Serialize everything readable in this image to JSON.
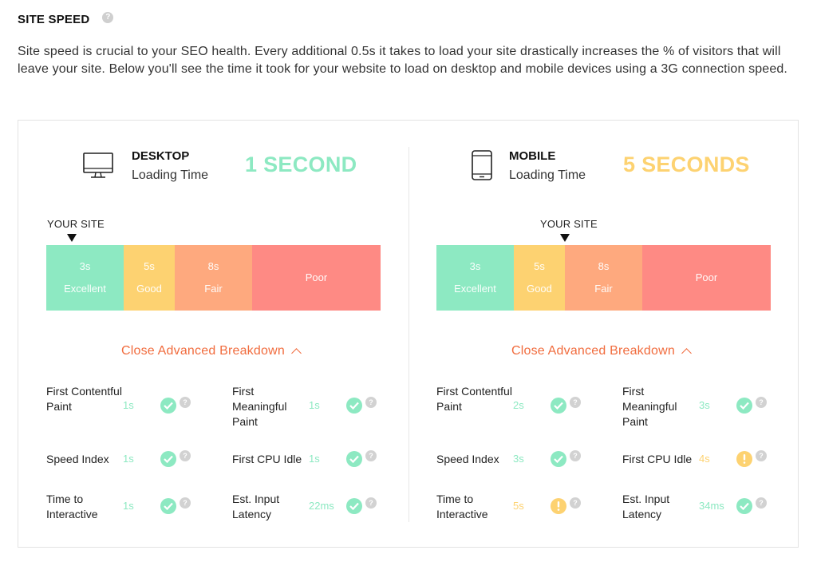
{
  "header": {
    "title": "SITE SPEED",
    "help": "?"
  },
  "intro": "Site speed is crucial to your SEO health. Every additional 0.5s it takes to load your site drastically increases the % of visitors that will leave your site. Below you'll see the time it took for your website to load on desktop and mobile devices using a 3G connection speed.",
  "colors": {
    "green": "#8de9c2",
    "yellow": "#fdd271",
    "orange": "#fea97e",
    "red": "#fe8a84",
    "accent": "#f16c3e"
  },
  "desktop": {
    "name": "DESKTOP",
    "sub": "Loading Time",
    "time": "1 SECOND",
    "your_site": "YOUR SITE",
    "scale": [
      {
        "top": "3s",
        "bottom": "Excellent"
      },
      {
        "top": "5s",
        "bottom": "Good"
      },
      {
        "top": "8s",
        "bottom": "Fair"
      },
      {
        "top": "",
        "bottom": "Poor"
      }
    ],
    "breakdown": "Close Advanced Breakdown",
    "metrics": [
      {
        "label": "First Contentful Paint",
        "value": "1s"
      },
      {
        "label": "First Meaningful Paint",
        "value": "1s"
      },
      {
        "label": "Speed Index",
        "value": "1s"
      },
      {
        "label": "First CPU Idle",
        "value": "1s"
      },
      {
        "label": "Time to Interactive",
        "value": "1s"
      },
      {
        "label": "Est. Input Latency",
        "value": "22ms"
      }
    ]
  },
  "mobile": {
    "name": "MOBILE",
    "sub": "Loading Time",
    "time": "5 SECONDS",
    "your_site": "YOUR SITE",
    "scale": [
      {
        "top": "3s",
        "bottom": "Excellent"
      },
      {
        "top": "5s",
        "bottom": "Good"
      },
      {
        "top": "8s",
        "bottom": "Fair"
      },
      {
        "top": "",
        "bottom": "Poor"
      }
    ],
    "breakdown": "Close Advanced Breakdown",
    "metrics": [
      {
        "label": "First Contentful Paint",
        "value": "2s"
      },
      {
        "label": "First Meaningful Paint",
        "value": "3s"
      },
      {
        "label": "Speed Index",
        "value": "3s"
      },
      {
        "label": "First CPU Idle",
        "value": "4s"
      },
      {
        "label": "Time to Interactive",
        "value": "5s"
      },
      {
        "label": "Est. Input Latency",
        "value": "34ms"
      }
    ]
  }
}
